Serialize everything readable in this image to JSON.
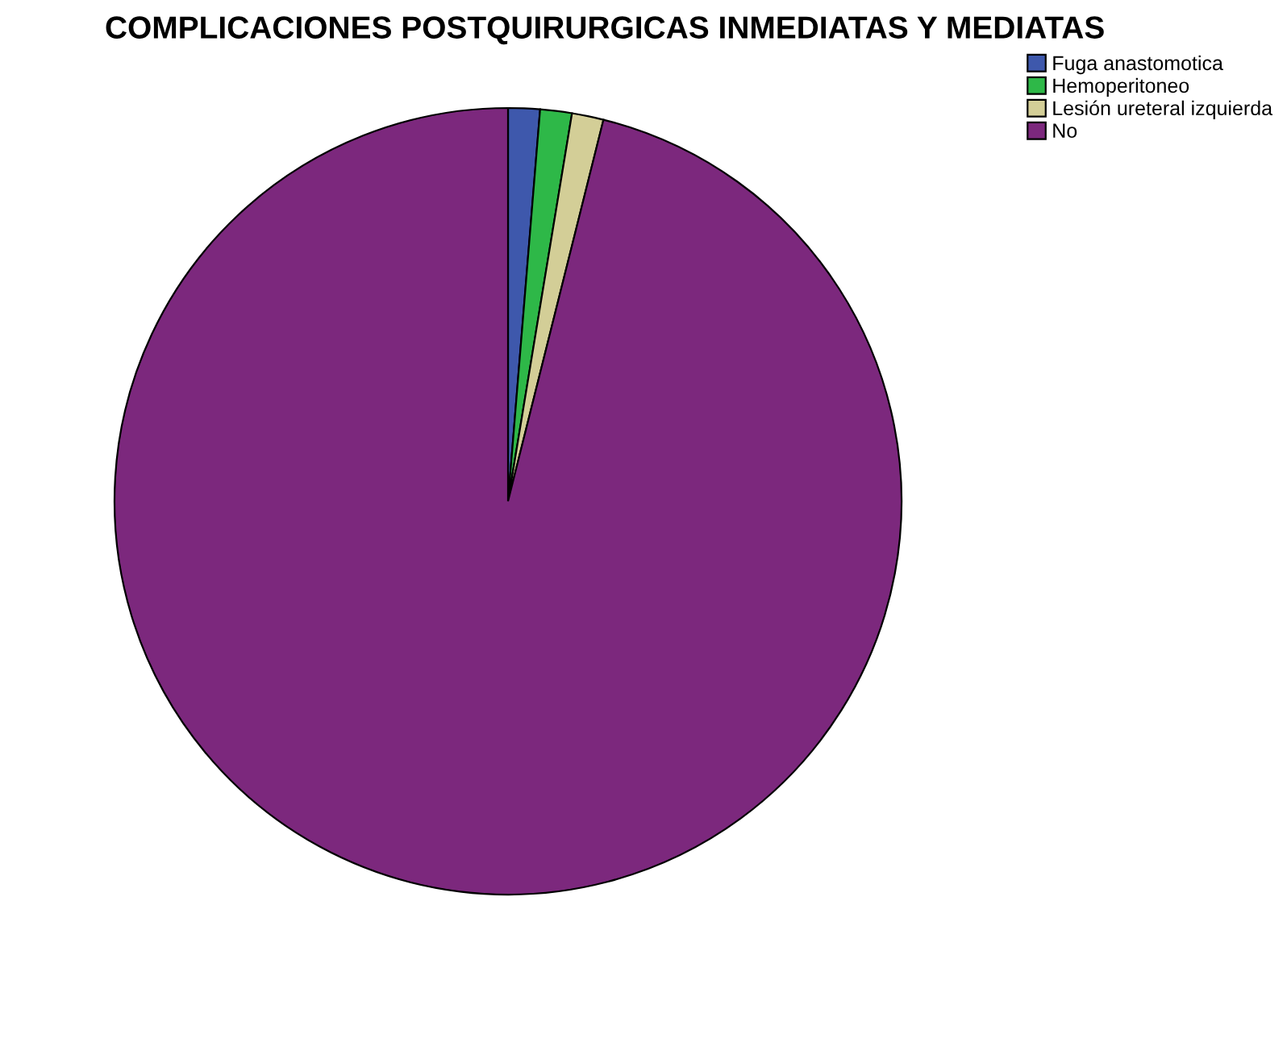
{
  "chart_data": {
    "type": "pie",
    "title": "COMPLICACIONES POSTQUIRURGICAS INMEDIATAS Y MEDIATAS",
    "categories": [
      "Fuga anastomotica",
      "Hemoperitoneo",
      "Lesión ureteral izquierda",
      "No"
    ],
    "values": [
      1.3,
      1.3,
      1.3,
      96.1
    ],
    "colors": [
      "#3e58ac",
      "#2eb848",
      "#d3ce97",
      "#7c287d"
    ],
    "legend": "top right"
  }
}
